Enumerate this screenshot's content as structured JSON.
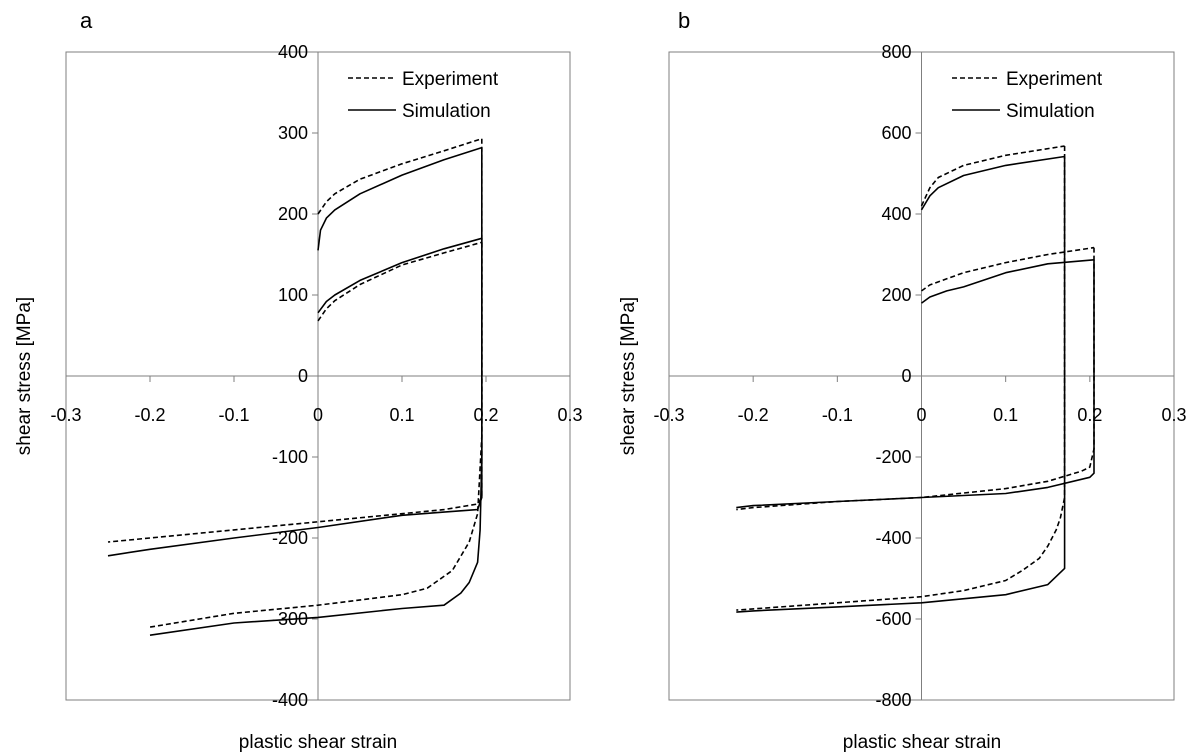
{
  "chart_data": [
    {
      "panel": "a",
      "type": "line",
      "xlabel": "plastic shear strain",
      "ylabel": "shear stress [MPa]",
      "xlim": [
        -0.3,
        0.3
      ],
      "ylim": [
        -400,
        400
      ],
      "xticks": [
        "-0.3",
        "-0.2",
        "-0.1",
        "0",
        "0.1",
        "0.2",
        "0.3"
      ],
      "yticks": [
        "400",
        "300",
        "200",
        "100",
        "0",
        "-100",
        "-200",
        "-300",
        "-400"
      ],
      "legend": {
        "position": "top-right",
        "entries": [
          "Experiment",
          "Simulation"
        ]
      },
      "grid": false,
      "series": [
        {
          "name": "Experiment",
          "style": "dashed",
          "segments": [
            [
              [
                0,
                200
              ],
              [
                0.01,
                215
              ],
              [
                0.02,
                225
              ],
              [
                0.05,
                243
              ],
              [
                0.1,
                262
              ],
              [
                0.15,
                278
              ],
              [
                0.195,
                293
              ]
            ],
            [
              [
                0,
                68
              ],
              [
                0.01,
                83
              ],
              [
                0.02,
                93
              ],
              [
                0.05,
                113
              ],
              [
                0.1,
                137
              ],
              [
                0.15,
                152
              ],
              [
                0.195,
                165
              ]
            ],
            [
              [
                0.195,
                293
              ],
              [
                0.195,
                -150
              ],
              [
                0.19,
                -158
              ],
              [
                0.15,
                -165
              ],
              [
                0.1,
                -170
              ],
              [
                0,
                -180
              ],
              [
                -0.1,
                -190
              ],
              [
                -0.2,
                -200
              ],
              [
                -0.25,
                -205
              ]
            ],
            [
              [
                0.195,
                165
              ],
              [
                0.195,
                -75
              ],
              [
                0.19,
                -170
              ],
              [
                0.18,
                -205
              ],
              [
                0.16,
                -240
              ],
              [
                0.13,
                -262
              ],
              [
                0.1,
                -270
              ],
              [
                0,
                -283
              ],
              [
                -0.1,
                -293
              ],
              [
                -0.2,
                -310
              ]
            ]
          ]
        },
        {
          "name": "Simulation",
          "style": "solid",
          "segments": [
            [
              [
                0,
                155
              ],
              [
                0.003,
                180
              ],
              [
                0.01,
                195
              ],
              [
                0.02,
                205
              ],
              [
                0.05,
                225
              ],
              [
                0.1,
                248
              ],
              [
                0.15,
                267
              ],
              [
                0.195,
                282
              ]
            ],
            [
              [
                0,
                78
              ],
              [
                0.01,
                92
              ],
              [
                0.02,
                100
              ],
              [
                0.05,
                118
              ],
              [
                0.1,
                140
              ],
              [
                0.15,
                157
              ],
              [
                0.195,
                170
              ]
            ],
            [
              [
                0.195,
                282
              ],
              [
                0.195,
                -150
              ],
              [
                0.19,
                -165
              ],
              [
                0.15,
                -168
              ],
              [
                0.1,
                -172
              ],
              [
                0,
                -187
              ],
              [
                -0.1,
                -200
              ],
              [
                -0.2,
                -214
              ],
              [
                -0.25,
                -222
              ]
            ],
            [
              [
                0.195,
                170
              ],
              [
                0.195,
                -100
              ],
              [
                0.193,
                -190
              ],
              [
                0.19,
                -230
              ],
              [
                0.18,
                -255
              ],
              [
                0.17,
                -268
              ],
              [
                0.15,
                -283
              ],
              [
                0.1,
                -287
              ],
              [
                0,
                -298
              ],
              [
                -0.1,
                -305
              ],
              [
                -0.2,
                -320
              ]
            ]
          ]
        }
      ]
    },
    {
      "panel": "b",
      "type": "line",
      "xlabel": "plastic shear strain",
      "ylabel": "shear stress [MPa]",
      "xlim": [
        -0.3,
        0.3
      ],
      "ylim": [
        -800,
        800
      ],
      "xticks": [
        "-0.3",
        "-0.2",
        "-0.1",
        "0",
        "0.1",
        "0.2",
        "0.3"
      ],
      "yticks": [
        "800",
        "600",
        "400",
        "200",
        "0",
        "-200",
        "-400",
        "-600",
        "-800"
      ],
      "legend": {
        "position": "top-right",
        "entries": [
          "Experiment",
          "Simulation"
        ]
      },
      "grid": false,
      "series": [
        {
          "name": "Experiment",
          "style": "dashed",
          "segments": [
            [
              [
                0,
                420
              ],
              [
                0.01,
                465
              ],
              [
                0.02,
                490
              ],
              [
                0.05,
                520
              ],
              [
                0.1,
                545
              ],
              [
                0.17,
                568
              ]
            ],
            [
              [
                0,
                210
              ],
              [
                0.01,
                225
              ],
              [
                0.03,
                240
              ],
              [
                0.05,
                255
              ],
              [
                0.1,
                280
              ],
              [
                0.15,
                300
              ],
              [
                0.205,
                317
              ]
            ],
            [
              [
                0.17,
                568
              ],
              [
                0.17,
                -300
              ],
              [
                0.165,
                -350
              ],
              [
                0.16,
                -380
              ],
              [
                0.15,
                -420
              ],
              [
                0.14,
                -450
              ],
              [
                0.12,
                -480
              ],
              [
                0.1,
                -505
              ],
              [
                0.05,
                -530
              ],
              [
                0,
                -545
              ],
              [
                -0.1,
                -560
              ],
              [
                -0.2,
                -575
              ],
              [
                -0.22,
                -578
              ]
            ],
            [
              [
                0.205,
                317
              ],
              [
                0.205,
                -180
              ],
              [
                0.2,
                -225
              ],
              [
                0.19,
                -235
              ],
              [
                0.15,
                -260
              ],
              [
                0.1,
                -278
              ],
              [
                0,
                -300
              ],
              [
                -0.1,
                -310
              ],
              [
                -0.2,
                -325
              ],
              [
                -0.22,
                -330
              ]
            ]
          ]
        },
        {
          "name": "Simulation",
          "style": "solid",
          "segments": [
            [
              [
                0,
                410
              ],
              [
                0.01,
                445
              ],
              [
                0.02,
                465
              ],
              [
                0.05,
                495
              ],
              [
                0.1,
                520
              ],
              [
                0.17,
                542
              ]
            ],
            [
              [
                0,
                180
              ],
              [
                0.01,
                195
              ],
              [
                0.03,
                210
              ],
              [
                0.05,
                220
              ],
              [
                0.1,
                255
              ],
              [
                0.15,
                277
              ],
              [
                0.205,
                287
              ]
            ],
            [
              [
                0.17,
                542
              ],
              [
                0.17,
                -475
              ],
              [
                0.15,
                -515
              ],
              [
                0.1,
                -540
              ],
              [
                0,
                -560
              ],
              [
                -0.1,
                -570
              ],
              [
                -0.2,
                -580
              ],
              [
                -0.22,
                -583
              ]
            ],
            [
              [
                0.205,
                287
              ],
              [
                0.205,
                -240
              ],
              [
                0.2,
                -250
              ],
              [
                0.15,
                -275
              ],
              [
                0.1,
                -290
              ],
              [
                0,
                -300
              ],
              [
                -0.1,
                -310
              ],
              [
                -0.2,
                -320
              ],
              [
                -0.22,
                -325
              ]
            ]
          ]
        }
      ]
    }
  ]
}
